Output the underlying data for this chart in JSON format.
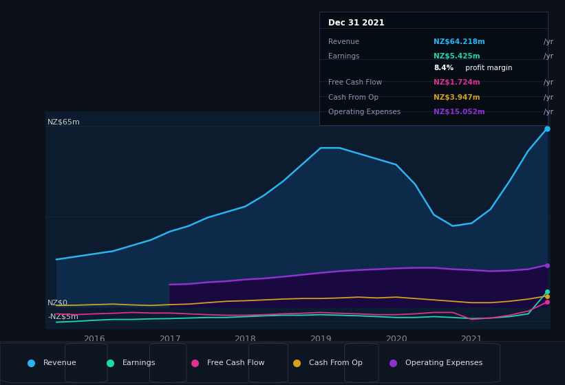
{
  "bg_color": "#0d1117",
  "chart_bg": "#0d1b2e",
  "ylabel_top": "NZ$65m",
  "ylabel_zero": "NZ$0",
  "ylabel_neg": "-NZ$5m",
  "x_years": [
    2015.5,
    2015.75,
    2016.0,
    2016.25,
    2016.5,
    2016.75,
    2017.0,
    2017.25,
    2017.5,
    2017.75,
    2018.0,
    2018.25,
    2018.5,
    2018.75,
    2019.0,
    2019.25,
    2019.5,
    2019.75,
    2020.0,
    2020.25,
    2020.5,
    2020.75,
    2021.0,
    2021.25,
    2021.5,
    2021.75,
    2022.0
  ],
  "revenue": [
    17,
    18,
    19,
    20,
    22,
    24,
    27,
    29,
    32,
    34,
    36,
    40,
    45,
    51,
    57,
    57,
    55,
    53,
    51,
    44,
    33,
    29,
    30,
    35,
    45,
    56,
    64
  ],
  "earnings": [
    -5.5,
    -5.2,
    -4.8,
    -4.5,
    -4.5,
    -4.3,
    -4.2,
    -4.0,
    -3.8,
    -3.8,
    -3.5,
    -3.2,
    -3.0,
    -3.0,
    -2.8,
    -3.0,
    -3.2,
    -3.5,
    -3.8,
    -3.8,
    -3.5,
    -3.8,
    -4.2,
    -4.0,
    -3.5,
    -2.5,
    5.4
  ],
  "free_cash_flow": [
    -2.5,
    -2.8,
    -2.5,
    -2.3,
    -2.0,
    -2.2,
    -2.2,
    -2.5,
    -2.8,
    -3.0,
    -3.0,
    -2.8,
    -2.5,
    -2.3,
    -2.0,
    -2.3,
    -2.5,
    -2.8,
    -2.8,
    -2.5,
    -2.0,
    -2.0,
    -4.5,
    -4.0,
    -3.0,
    -1.5,
    1.7
  ],
  "cash_from_op": [
    0.5,
    0.6,
    0.8,
    1.0,
    0.7,
    0.5,
    0.8,
    1.0,
    1.5,
    2.0,
    2.2,
    2.5,
    2.8,
    3.0,
    3.0,
    3.2,
    3.5,
    3.2,
    3.5,
    3.0,
    2.5,
    2.0,
    1.5,
    1.5,
    2.0,
    2.8,
    3.9
  ],
  "op_expenses": [
    0,
    0,
    0,
    0,
    0,
    0,
    8.0,
    8.2,
    8.8,
    9.2,
    9.8,
    10.2,
    10.8,
    11.5,
    12.2,
    12.8,
    13.2,
    13.5,
    13.8,
    14.0,
    14.0,
    13.5,
    13.2,
    12.8,
    13.0,
    13.5,
    15.0
  ],
  "revenue_color": "#2ab4f0",
  "earnings_color": "#20d8b0",
  "fcf_color": "#e03090",
  "cashop_color": "#d4a020",
  "opex_color": "#9030d0",
  "revenue_fill": "#0e2a4a",
  "opex_fill": "#1a0840",
  "tooltip_bg": "#060c14",
  "legend_bg": "#0d1520",
  "x_ticks": [
    2016,
    2017,
    2018,
    2019,
    2020,
    2021
  ],
  "ylim": [
    -8,
    70
  ],
  "grid_color": "#1a2840",
  "sep_color": "#252545",
  "tooltip_title": "Dec 31 2021",
  "tooltip_rows": [
    {
      "label": "Revenue",
      "value": "NZ$64.218m",
      "color": "#2ab4f0"
    },
    {
      "label": "Earnings",
      "value": "NZ$5.425m",
      "color": "#20d8b0"
    },
    {
      "label": "",
      "value": "8.4% profit margin",
      "color": "#ffffff",
      "bold_part": "8.4%"
    },
    {
      "label": "Free Cash Flow",
      "value": "NZ$1.724m",
      "color": "#e03090"
    },
    {
      "label": "Cash From Op",
      "value": "NZ$3.947m",
      "color": "#d4a020"
    },
    {
      "label": "Operating Expenses",
      "value": "NZ$15.052m",
      "color": "#9030d0"
    }
  ],
  "legend_entries": [
    {
      "label": "Revenue",
      "color": "#2ab4f0"
    },
    {
      "label": "Earnings",
      "color": "#20d8b0"
    },
    {
      "label": "Free Cash Flow",
      "color": "#e03090"
    },
    {
      "label": "Cash From Op",
      "color": "#d4a020"
    },
    {
      "label": "Operating Expenses",
      "color": "#9030d0"
    }
  ]
}
